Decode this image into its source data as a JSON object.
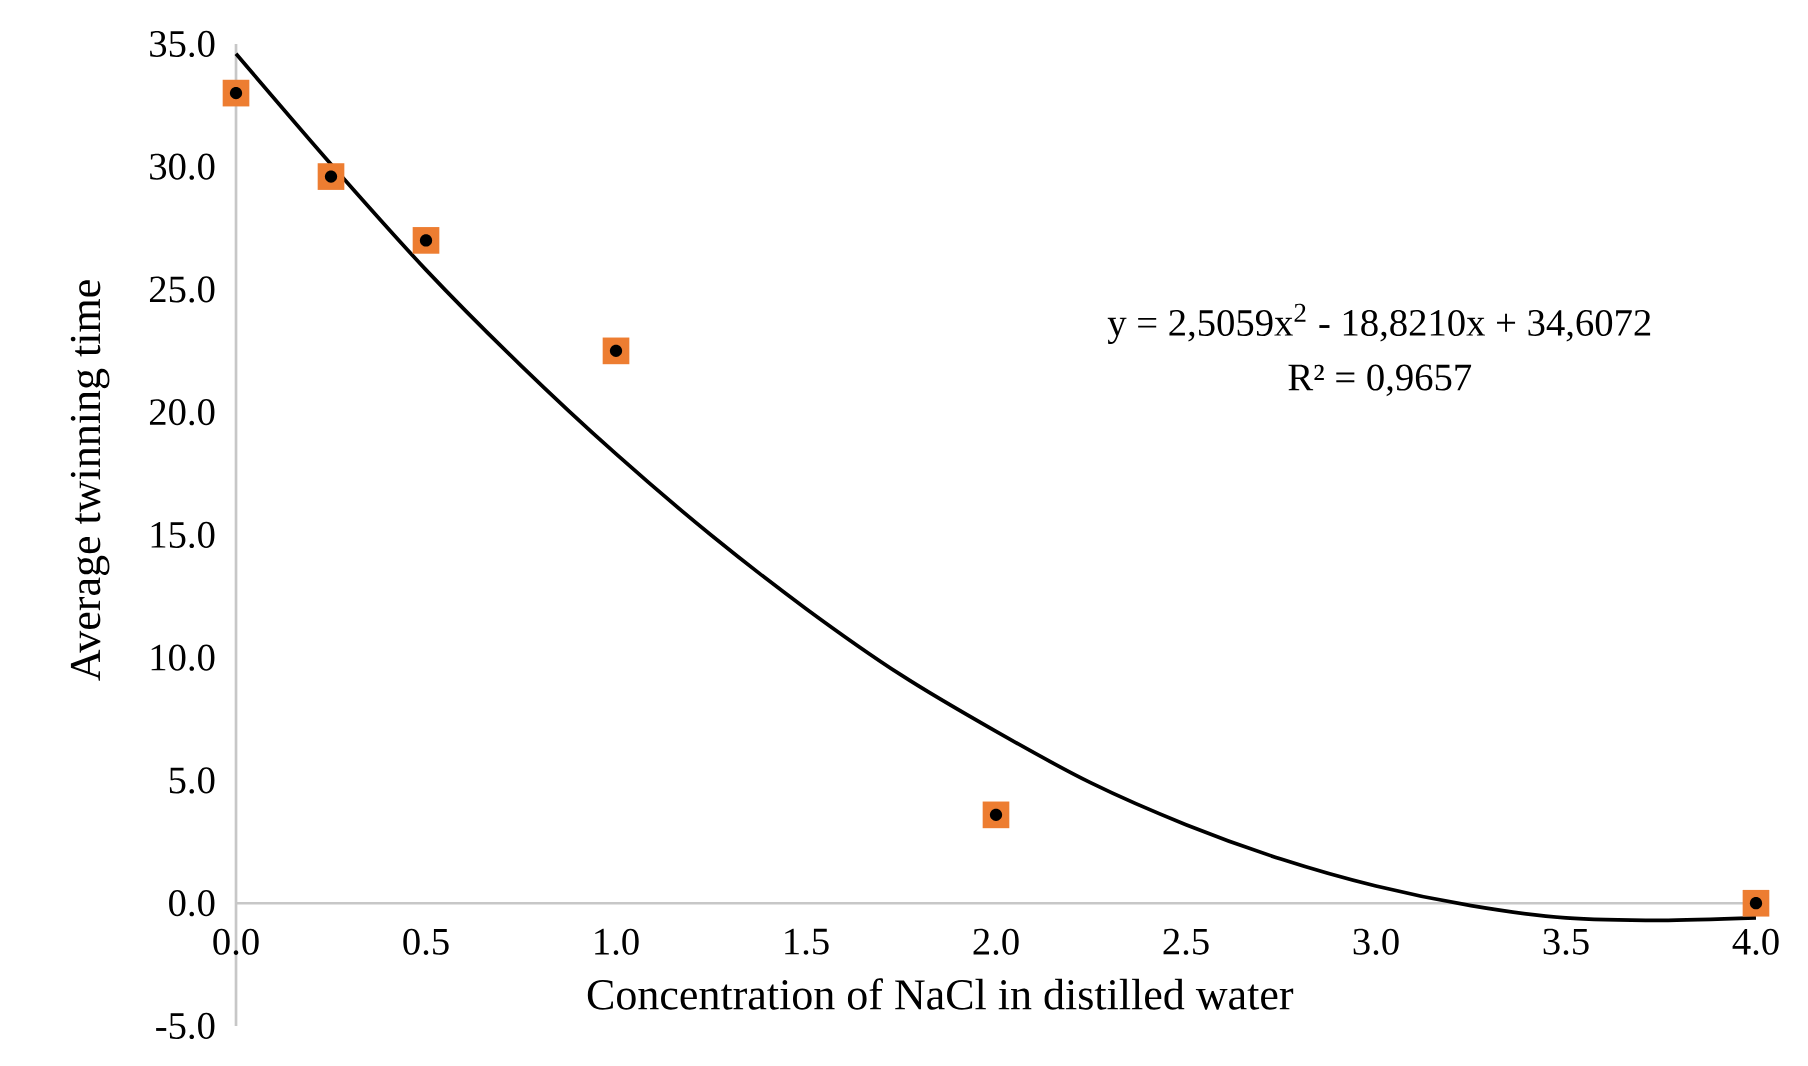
{
  "chart_data": {
    "type": "scatter",
    "xlabel": "Concentration of NaCl in distilled water",
    "ylabel": "Average twinning time",
    "annotations": [
      "y = 2,5059x$^{2}$ - 18,8210x + 34,6072",
      "R² = 0,9657"
    ],
    "xlim": [
      0,
      4
    ],
    "ylim": [
      -5,
      35
    ],
    "xticks": [
      {
        "value": 0,
        "label": "0.0"
      },
      {
        "value": 0.5,
        "label": "0.5"
      },
      {
        "value": 1,
        "label": "1.0"
      },
      {
        "value": 1.5,
        "label": "1.5"
      },
      {
        "value": 2,
        "label": "2.0"
      },
      {
        "value": 2.5,
        "label": "2.5"
      },
      {
        "value": 3,
        "label": "3.0"
      },
      {
        "value": 3.5,
        "label": "3.5"
      },
      {
        "value": 4,
        "label": "4.0"
      }
    ],
    "yticks": [
      {
        "value": -5,
        "label": "-5.0"
      },
      {
        "value": 0,
        "label": "0.0"
      },
      {
        "value": 5,
        "label": "5.0"
      },
      {
        "value": 10,
        "label": "10.0"
      },
      {
        "value": 15,
        "label": "15.0"
      },
      {
        "value": 20,
        "label": "20.0"
      },
      {
        "value": 25,
        "label": "25.0"
      },
      {
        "value": 30,
        "label": "30.0"
      },
      {
        "value": 35,
        "label": "35.0"
      }
    ],
    "grid": false,
    "series": [
      {
        "type": "scatter",
        "marker": "square",
        "color": "#ed7d31",
        "x": [
          0,
          0.25,
          0.5,
          1,
          2,
          4
        ],
        "values": [
          33.0,
          29.6,
          27.0,
          22.5,
          3.6,
          0.0
        ]
      },
      {
        "type": "line",
        "marker": "none",
        "color": "#000000",
        "x": [
          0,
          0.25,
          0.5,
          0.75,
          1,
          1.25,
          1.5,
          1.75,
          2,
          2.25,
          2.5,
          2.75,
          3,
          3.25,
          3.5,
          3.75,
          4
        ],
        "values": [
          34.6,
          30.1,
          25.8,
          21.9,
          18.3,
          15.0,
          12.0,
          9.3,
          7.0,
          4.9,
          3.2,
          1.8,
          0.7,
          -0.1,
          -0.6,
          -0.7,
          -0.6
        ]
      }
    ]
  }
}
